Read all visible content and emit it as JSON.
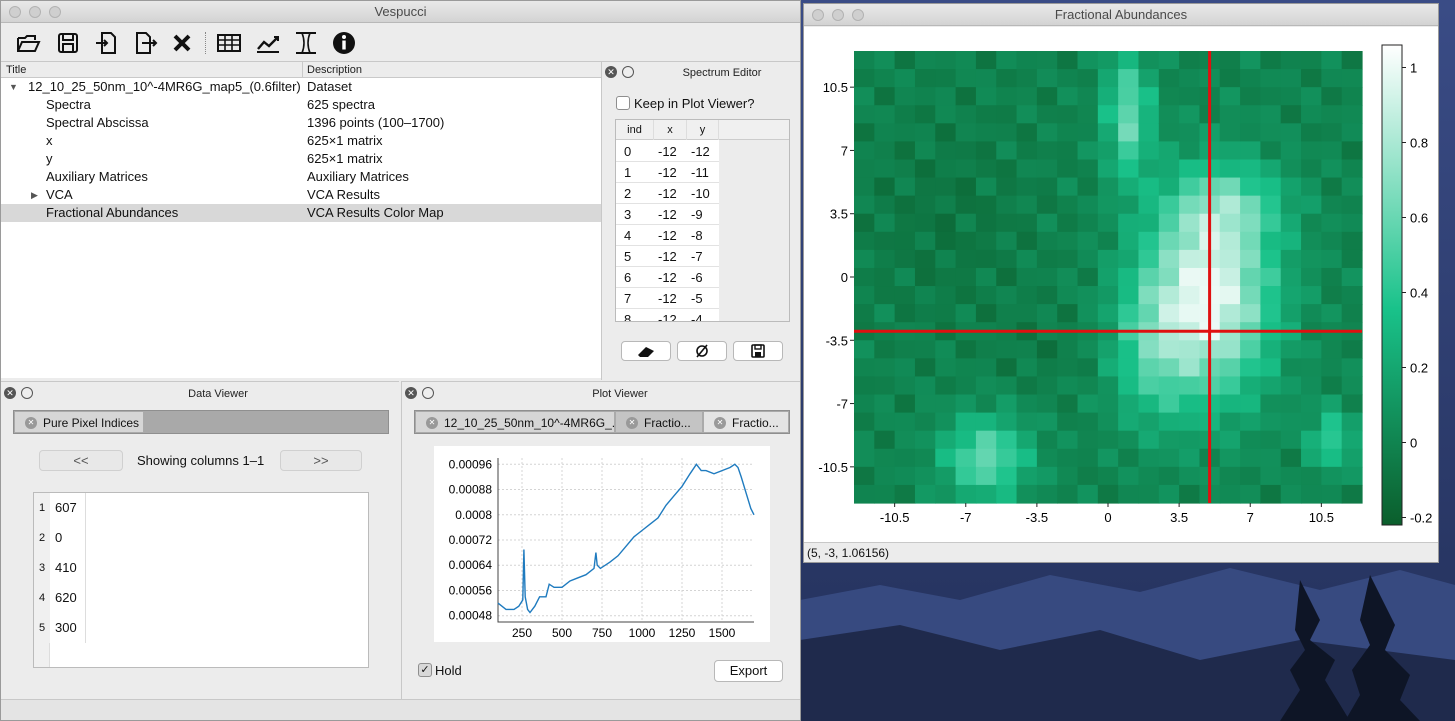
{
  "main_window": {
    "title": "Vespucci",
    "toolbar": [
      "open-icon",
      "save-icon",
      "import-icon",
      "export-icon",
      "close-dataset-icon",
      "table-icon",
      "plot-icon",
      "spectrum-icon",
      "info-icon"
    ],
    "tree": {
      "col_title": "Title",
      "col_desc": "Description",
      "rows": [
        {
          "title": "12_10_25_50nm_10^-4MR6G_map5_(0.6filter)",
          "desc": "Dataset",
          "indent": 0,
          "arrow": "expanded"
        },
        {
          "title": "Spectra",
          "desc": "625 spectra",
          "indent": 1
        },
        {
          "title": "Spectral Abscissa",
          "desc": "1396 points (100–1700)",
          "indent": 1
        },
        {
          "title": "x",
          "desc": "625×1 matrix",
          "indent": 1
        },
        {
          "title": "y",
          "desc": "625×1 matrix",
          "indent": 1
        },
        {
          "title": "Auxiliary Matrices",
          "desc": "Auxiliary Matrices",
          "indent": 1
        },
        {
          "title": "VCA",
          "desc": "VCA Results",
          "indent": 1,
          "arrow": "collapsed"
        },
        {
          "title": "Fractional Abundances",
          "desc": "VCA Results Color Map",
          "indent": 1,
          "selected": true
        }
      ]
    },
    "spectrum_editor": {
      "title": "Spectrum Editor",
      "keep_label": "Keep in Plot Viewer?",
      "headers": [
        "ind",
        "x",
        "y"
      ],
      "rows": [
        [
          "0",
          "-12",
          "-12"
        ],
        [
          "1",
          "-12",
          "-11"
        ],
        [
          "2",
          "-12",
          "-10"
        ],
        [
          "3",
          "-12",
          "-9"
        ],
        [
          "4",
          "-12",
          "-8"
        ],
        [
          "5",
          "-12",
          "-7"
        ],
        [
          "6",
          "-12",
          "-6"
        ],
        [
          "7",
          "-12",
          "-5"
        ],
        [
          "8",
          "-12",
          "-4"
        ]
      ]
    },
    "data_viewer": {
      "title": "Data Viewer",
      "tab": "Pure Pixel Indices",
      "prev": "<<",
      "next": ">>",
      "showing": "Showing columns 1–1",
      "rows": [
        [
          "1",
          "607"
        ],
        [
          "2",
          "0"
        ],
        [
          "3",
          "410"
        ],
        [
          "4",
          "620"
        ],
        [
          "5",
          "300"
        ]
      ]
    },
    "plot_viewer": {
      "title": "Plot Viewer",
      "tabs": [
        "12_10_25_50nm_10^-4MR6G_...",
        "Fractio...",
        "Fractio..."
      ],
      "hold_label": "Hold",
      "export_label": "Export"
    }
  },
  "chart_data": [
    {
      "type": "line",
      "x_ticks": [
        "250",
        "500",
        "750",
        "1000",
        "1250",
        "1500"
      ],
      "y_ticks": [
        "0.00096",
        "0.00088",
        "0.0008",
        "0.00072",
        "0.00064",
        "0.00056",
        "0.00048"
      ],
      "xlim": [
        100,
        1700
      ],
      "ylim": [
        0.00046,
        0.00098
      ],
      "grid": true,
      "color": "#1f7bbf",
      "x": [
        100,
        150,
        200,
        230,
        255,
        262,
        270,
        285,
        300,
        330,
        360,
        400,
        420,
        450,
        500,
        550,
        600,
        650,
        700,
        712,
        720,
        740,
        800,
        850,
        900,
        950,
        1000,
        1050,
        1100,
        1150,
        1200,
        1250,
        1300,
        1340,
        1370,
        1400,
        1450,
        1500,
        1550,
        1580,
        1600,
        1620,
        1650,
        1680,
        1700
      ],
      "y": [
        0.00052,
        0.0005,
        0.0005,
        0.00051,
        0.00053,
        0.00069,
        0.00054,
        0.0005,
        0.00049,
        0.00051,
        0.00054,
        0.00054,
        0.00058,
        0.00057,
        0.00057,
        0.00059,
        0.0006,
        0.00061,
        0.00063,
        0.00068,
        0.00064,
        0.00063,
        0.00065,
        0.00067,
        0.0007,
        0.00073,
        0.00075,
        0.00077,
        0.00079,
        0.00083,
        0.00086,
        0.00089,
        0.00093,
        0.00096,
        0.00094,
        0.00094,
        0.00093,
        0.00094,
        0.00095,
        0.00096,
        0.00095,
        0.00092,
        0.00087,
        0.00082,
        0.0008
      ]
    },
    {
      "type": "heatmap",
      "title": "Fractional Abundances",
      "x_ticks": [
        "-10.5",
        "-7",
        "-3.5",
        "0",
        "3.5",
        "7",
        "10.5"
      ],
      "y_ticks": [
        "10.5",
        "7",
        "3.5",
        "0",
        "-3.5",
        "-7",
        "-10.5"
      ],
      "xlim": [
        -12.5,
        12.5
      ],
      "ylim": [
        -12.5,
        12.5
      ],
      "colorbar_ticks": [
        "1",
        "0.8",
        "0.6",
        "0.4",
        "0.2",
        "0",
        "-0.2"
      ],
      "clim": [
        -0.22,
        1.06
      ],
      "color_low": "#0b5e2c",
      "color_mid": "#19c28a",
      "color_high": "#ffffff",
      "crosshair": [
        5,
        -3
      ],
      "line_color": "#e01010",
      "status": "(5, -3, 1.06156)"
    }
  ],
  "float_window": {
    "title": "Fractional Abundances"
  }
}
